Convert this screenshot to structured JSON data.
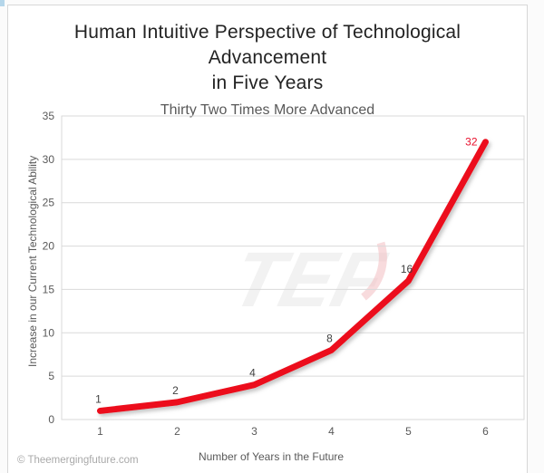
{
  "page": {
    "watermark": "TEF",
    "copyright": "© Theemergingfuture.com"
  },
  "chart_data": {
    "type": "line",
    "title": "Human Intuitive Perspective of Technological Advancement in Five Years",
    "title_lines": [
      "Human Intuitive Perspective of Technological Advancement",
      "in Five Years"
    ],
    "subtitle": "Thirty Two Times More Advanced",
    "xlabel": "Number of Years in the Future",
    "ylabel": "Increase in our Current Technological Ability",
    "x": [
      1,
      2,
      3,
      4,
      5,
      6
    ],
    "values": [
      1,
      2,
      4,
      8,
      16,
      32
    ],
    "data_labels": [
      "1",
      "2",
      "4",
      "8",
      "16",
      "32"
    ],
    "ylim": [
      0,
      35
    ],
    "yticks": [
      0,
      5,
      10,
      15,
      20,
      25,
      30,
      35
    ],
    "grid": true,
    "legend": "none",
    "line_color": "#ec111f",
    "label_color": "#404040",
    "last_label_color": "#e8112d",
    "axis_color": "#595959",
    "grid_color": "#d9d9d9",
    "watermark_color": "#f2f2f2",
    "watermark_arc_color": "#f2b8bc"
  }
}
